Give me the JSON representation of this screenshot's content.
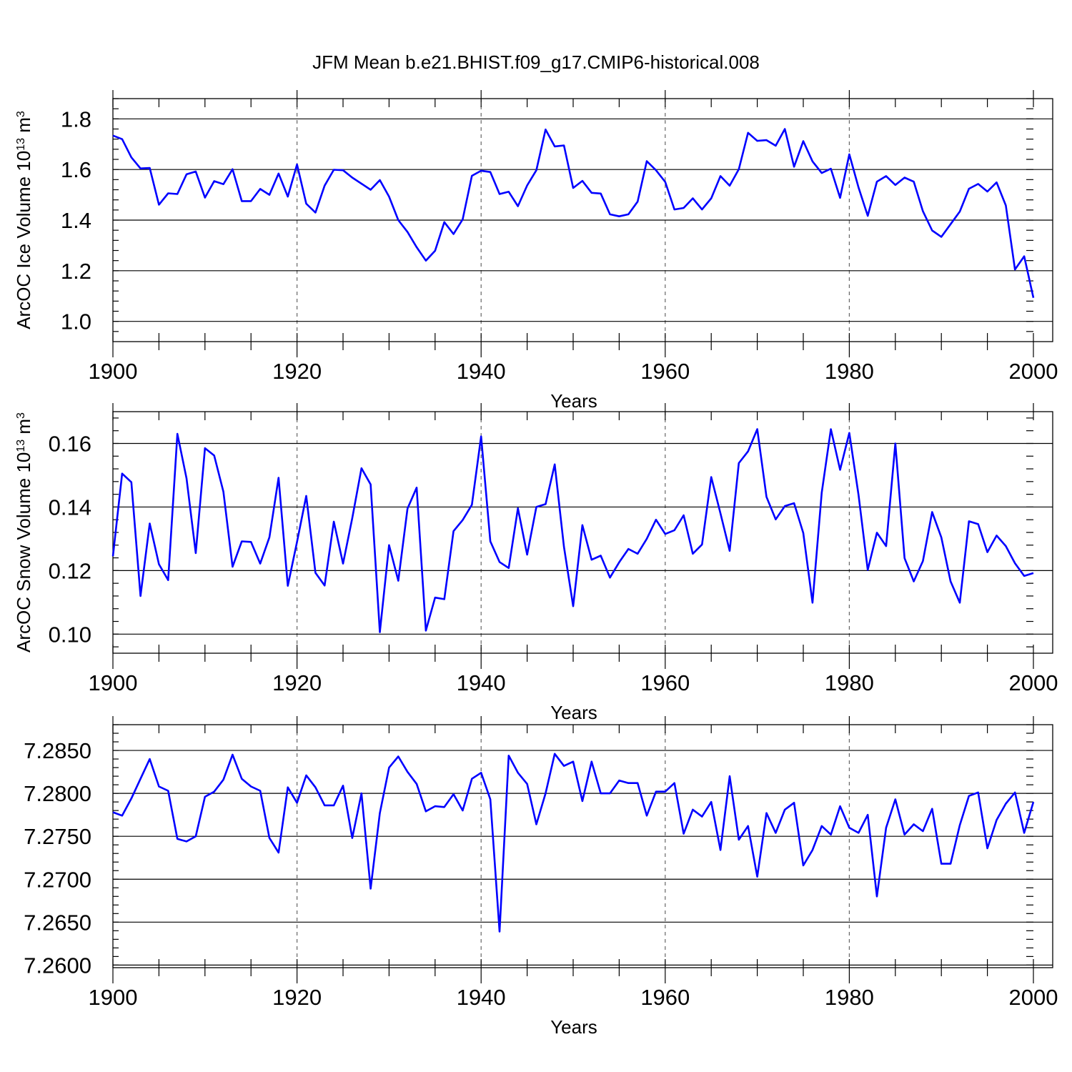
{
  "figure": {
    "title": "JFM Mean b.e21.BHIST.f09_g17.CMIP6-historical.008",
    "line_color": "#0000ff"
  },
  "chart_data": [
    {
      "type": "line",
      "ylabel": "ArcOC Ice Volume 10",
      "ylabel_sup": "13",
      "ylabel_unit": " m",
      "ylabel_unit_sup": "3",
      "xlabel": "Years",
      "xlim": [
        1900,
        2000
      ],
      "ylim": [
        0.92,
        1.88
      ],
      "x_ticks": [
        "1900",
        "1920",
        "1940",
        "1960",
        "1980",
        "2000"
      ],
      "x_tick_values": [
        1900,
        1920,
        1940,
        1960,
        1980,
        2000
      ],
      "y_ticks": [
        "1.0",
        "1.2",
        "1.4",
        "1.6",
        "1.8"
      ],
      "y_tick_values": [
        1.0,
        1.2,
        1.4,
        1.6,
        1.8
      ],
      "y_minor_step": 0.04,
      "x_start": 1900,
      "values": [
        1.734,
        1.72,
        1.648,
        1.604,
        1.606,
        1.461,
        1.506,
        1.503,
        1.581,
        1.592,
        1.489,
        1.554,
        1.542,
        1.601,
        1.475,
        1.475,
        1.523,
        1.5,
        1.584,
        1.493,
        1.62,
        1.465,
        1.43,
        1.536,
        1.599,
        1.597,
        1.568,
        1.544,
        1.52,
        1.558,
        1.493,
        1.4,
        1.353,
        1.293,
        1.24,
        1.279,
        1.392,
        1.345,
        1.403,
        1.575,
        1.595,
        1.59,
        1.503,
        1.512,
        1.455,
        1.537,
        1.597,
        1.758,
        1.691,
        1.695,
        1.527,
        1.555,
        1.508,
        1.505,
        1.423,
        1.415,
        1.423,
        1.473,
        1.633,
        1.597,
        1.551,
        1.442,
        1.448,
        1.486,
        1.442,
        1.486,
        1.574,
        1.536,
        1.601,
        1.745,
        1.713,
        1.716,
        1.694,
        1.76,
        1.611,
        1.712,
        1.632,
        1.586,
        1.603,
        1.488,
        1.66,
        1.529,
        1.417,
        1.552,
        1.574,
        1.539,
        1.568,
        1.552,
        1.435,
        1.359,
        1.334,
        1.384,
        1.434,
        1.524,
        1.543,
        1.513,
        1.549,
        1.458,
        1.205,
        1.257,
        1.093
      ]
    },
    {
      "type": "line",
      "ylabel": "ArcOC Snow Volume 10",
      "ylabel_sup": "13",
      "ylabel_unit": " m",
      "ylabel_unit_sup": "3",
      "xlabel": "Years",
      "xlim": [
        1900,
        2000
      ],
      "ylim": [
        0.094,
        0.17
      ],
      "x_ticks": [
        "1900",
        "1920",
        "1940",
        "1960",
        "1980",
        "2000"
      ],
      "x_tick_values": [
        1900,
        1920,
        1940,
        1960,
        1980,
        2000
      ],
      "y_ticks": [
        "0.10",
        "0.12",
        "0.14",
        "0.16"
      ],
      "y_tick_values": [
        0.1,
        0.12,
        0.14,
        0.16
      ],
      "y_minor_step": 0.004,
      "x_start": 1900,
      "values": [
        0.1245,
        0.1505,
        0.1478,
        0.112,
        0.1348,
        0.122,
        0.117,
        0.163,
        0.149,
        0.1255,
        0.1585,
        0.1562,
        0.1448,
        0.1212,
        0.1292,
        0.129,
        0.1222,
        0.1305,
        0.1492,
        0.1152,
        0.129,
        0.1435,
        0.1193,
        0.1153,
        0.1354,
        0.1222,
        0.1365,
        0.1522,
        0.1471,
        0.1006,
        0.128,
        0.1168,
        0.1395,
        0.1461,
        0.1011,
        0.1115,
        0.111,
        0.1324,
        0.1359,
        0.1407,
        0.1622,
        0.1292,
        0.1227,
        0.1208,
        0.1396,
        0.125,
        0.14,
        0.1409,
        0.1534,
        0.1275,
        0.1088,
        0.1343,
        0.1234,
        0.1247,
        0.1178,
        0.1226,
        0.1268,
        0.1253,
        0.13,
        0.136,
        0.1315,
        0.1327,
        0.1374,
        0.1253,
        0.1282,
        0.1494,
        0.138,
        0.1262,
        0.1538,
        0.1575,
        0.1645,
        0.1432,
        0.1361,
        0.1403,
        0.1412,
        0.1318,
        0.1099,
        0.1445,
        0.1645,
        0.1517,
        0.1633,
        0.1438,
        0.1202,
        0.1319,
        0.1277,
        0.16,
        0.1239,
        0.1166,
        0.123,
        0.1384,
        0.1304,
        0.1166,
        0.1099,
        0.1355,
        0.1346,
        0.1258,
        0.131,
        0.1277,
        0.1223,
        0.1183,
        0.1192
      ]
    },
    {
      "type": "line",
      "ylabel": "",
      "xlabel": "Years",
      "xlim": [
        1900,
        2000
      ],
      "ylim": [
        7.2597,
        7.288
      ],
      "x_ticks": [
        "1900",
        "1920",
        "1940",
        "1960",
        "1980",
        "2000"
      ],
      "x_tick_values": [
        1900,
        1920,
        1940,
        1960,
        1980,
        2000
      ],
      "y_ticks": [
        "7.2600",
        "7.2650",
        "7.2700",
        "7.2750",
        "7.2800",
        "7.2850"
      ],
      "y_tick_values": [
        7.26,
        7.265,
        7.27,
        7.275,
        7.28,
        7.285
      ],
      "y_minor_step": 0.001,
      "x_start": 1900,
      "values": [
        7.2778,
        7.2774,
        7.2794,
        7.2817,
        7.284,
        7.2808,
        7.2803,
        7.2747,
        7.2744,
        7.275,
        7.2796,
        7.2802,
        7.2816,
        7.2845,
        7.2817,
        7.2808,
        7.2803,
        7.2748,
        7.2731,
        7.2807,
        7.2789,
        7.2821,
        7.2807,
        7.2786,
        7.2786,
        7.2809,
        7.2748,
        7.28,
        7.2689,
        7.2777,
        7.283,
        7.2843,
        7.2825,
        7.2811,
        7.2779,
        7.2785,
        7.2784,
        7.2799,
        7.278,
        7.2817,
        7.2824,
        7.2793,
        7.2639,
        7.2844,
        7.2824,
        7.2811,
        7.2764,
        7.28,
        7.2846,
        7.2832,
        7.2837,
        7.2791,
        7.2837,
        7.28,
        7.28,
        7.2815,
        7.2812,
        7.2812,
        7.2774,
        7.2802,
        7.2802,
        7.2812,
        7.2753,
        7.2781,
        7.2773,
        7.279,
        7.2734,
        7.282,
        7.2746,
        7.2762,
        7.2703,
        7.2777,
        7.2754,
        7.2781,
        7.2789,
        7.2716,
        7.2734,
        7.2762,
        7.2752,
        7.2785,
        7.276,
        7.2754,
        7.2775,
        7.268,
        7.276,
        7.2793,
        7.2752,
        7.2764,
        7.2756,
        7.2782,
        7.2718,
        7.2718,
        7.2763,
        7.2797,
        7.2801,
        7.2736,
        7.2769,
        7.2788,
        7.2801,
        7.2754,
        7.279
      ]
    }
  ]
}
